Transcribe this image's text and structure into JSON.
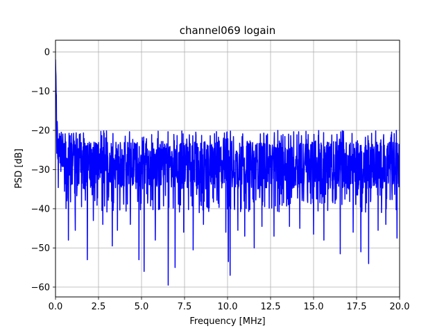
{
  "chart_data": {
    "type": "line",
    "title": "channel069 logain",
    "xlabel": "Frequency [MHz]",
    "ylabel": "PSD [dB]",
    "xlim": [
      0,
      20
    ],
    "ylim": [
      -62.5,
      3
    ],
    "xticks": [
      0,
      2.5,
      5,
      7.5,
      10,
      12.5,
      15,
      17.5,
      20
    ],
    "xtick_labels": [
      "0.0",
      "2.5",
      "5.0",
      "7.5",
      "10.0",
      "12.5",
      "15.0",
      "17.5",
      "20.0"
    ],
    "yticks": [
      0,
      -10,
      -20,
      -30,
      -40,
      -50,
      -60
    ],
    "ytick_labels": [
      "0",
      "−10",
      "−20",
      "−30",
      "−40",
      "−50",
      "−60"
    ],
    "grid": true,
    "series": [
      {
        "color": "#0000ff",
        "x_start": 0,
        "x_end": 20,
        "num_points": 1600,
        "start_value": -1,
        "noise_floor": -29,
        "peak_envelope": -20,
        "min_envelope": -41,
        "deep_dips": [
          {
            "x": 0.75,
            "y": -48
          },
          {
            "x": 1.15,
            "y": -45.5
          },
          {
            "x": 1.85,
            "y": -53
          },
          {
            "x": 2.2,
            "y": -43
          },
          {
            "x": 2.75,
            "y": -44
          },
          {
            "x": 3.3,
            "y": -49.5
          },
          {
            "x": 3.6,
            "y": -45.5
          },
          {
            "x": 4.35,
            "y": -44
          },
          {
            "x": 4.85,
            "y": -53
          },
          {
            "x": 5.15,
            "y": -56
          },
          {
            "x": 5.8,
            "y": -48
          },
          {
            "x": 6.55,
            "y": -59.5
          },
          {
            "x": 6.95,
            "y": -55
          },
          {
            "x": 7.45,
            "y": -46
          },
          {
            "x": 8.0,
            "y": -50.5
          },
          {
            "x": 8.6,
            "y": -44
          },
          {
            "x": 9.9,
            "y": -46
          },
          {
            "x": 10.05,
            "y": -53.5
          },
          {
            "x": 10.15,
            "y": -57
          },
          {
            "x": 10.6,
            "y": -45.5
          },
          {
            "x": 11.0,
            "y": -47
          },
          {
            "x": 11.55,
            "y": -50
          },
          {
            "x": 12.0,
            "y": -44.5
          },
          {
            "x": 12.7,
            "y": -47
          },
          {
            "x": 13.6,
            "y": -44.5
          },
          {
            "x": 14.2,
            "y": -45
          },
          {
            "x": 15.0,
            "y": -46.5
          },
          {
            "x": 15.6,
            "y": -48
          },
          {
            "x": 16.55,
            "y": -51.5
          },
          {
            "x": 17.3,
            "y": -46
          },
          {
            "x": 17.75,
            "y": -51
          },
          {
            "x": 18.2,
            "y": -54
          },
          {
            "x": 18.75,
            "y": -45.5
          },
          {
            "x": 19.2,
            "y": -44
          },
          {
            "x": 19.85,
            "y": -47.5
          }
        ]
      }
    ]
  }
}
